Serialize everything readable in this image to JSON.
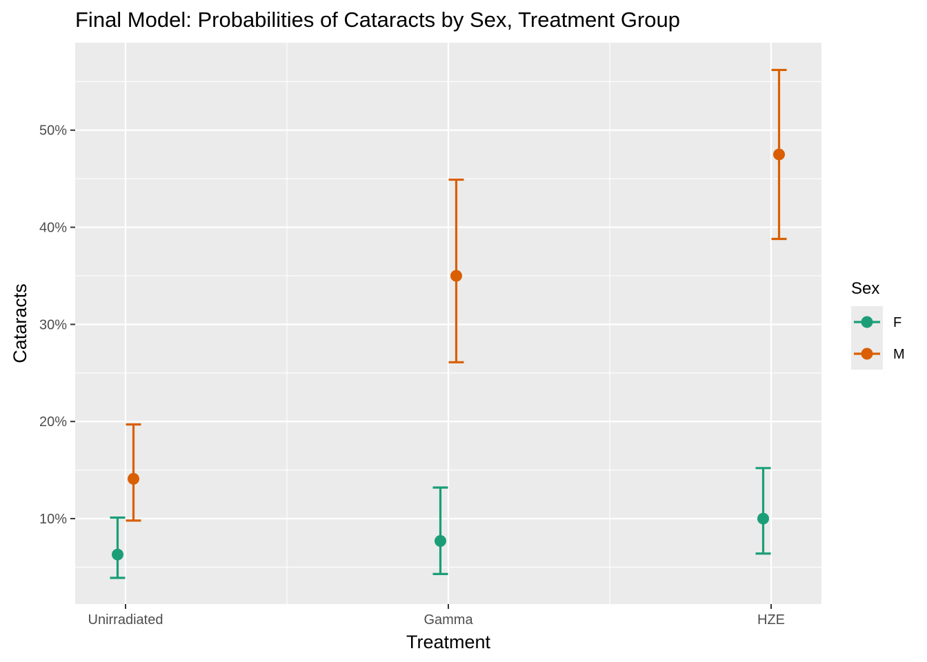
{
  "chart_data": {
    "type": "scatter",
    "subtype": "point-with-errorbars",
    "title": "Final Model: Probabilities of Cataracts by Sex, Treatment Group",
    "xlabel": "Treatment",
    "ylabel": "Cataracts",
    "categories": [
      "Unirradiated",
      "Gamma",
      "HZE"
    ],
    "y_tick_values": [
      0.1,
      0.2,
      0.3,
      0.4,
      0.5
    ],
    "y_tick_labels": [
      "10%",
      "20%",
      "30%",
      "40%",
      "50%"
    ],
    "ylim": [
      0.012,
      0.59
    ],
    "grid": true,
    "legend": {
      "title": "Sex",
      "position": "right"
    },
    "series": [
      {
        "name": "F",
        "color": "#1b9e77",
        "values": [
          0.063,
          0.077,
          0.1
        ],
        "lower": [
          0.039,
          0.043,
          0.064
        ],
        "upper": [
          0.101,
          0.132,
          0.152
        ]
      },
      {
        "name": "M",
        "color": "#d95f02",
        "values": [
          0.141,
          0.35,
          0.475
        ],
        "lower": [
          0.098,
          0.261,
          0.388
        ],
        "upper": [
          0.197,
          0.449,
          0.562
        ]
      }
    ]
  }
}
